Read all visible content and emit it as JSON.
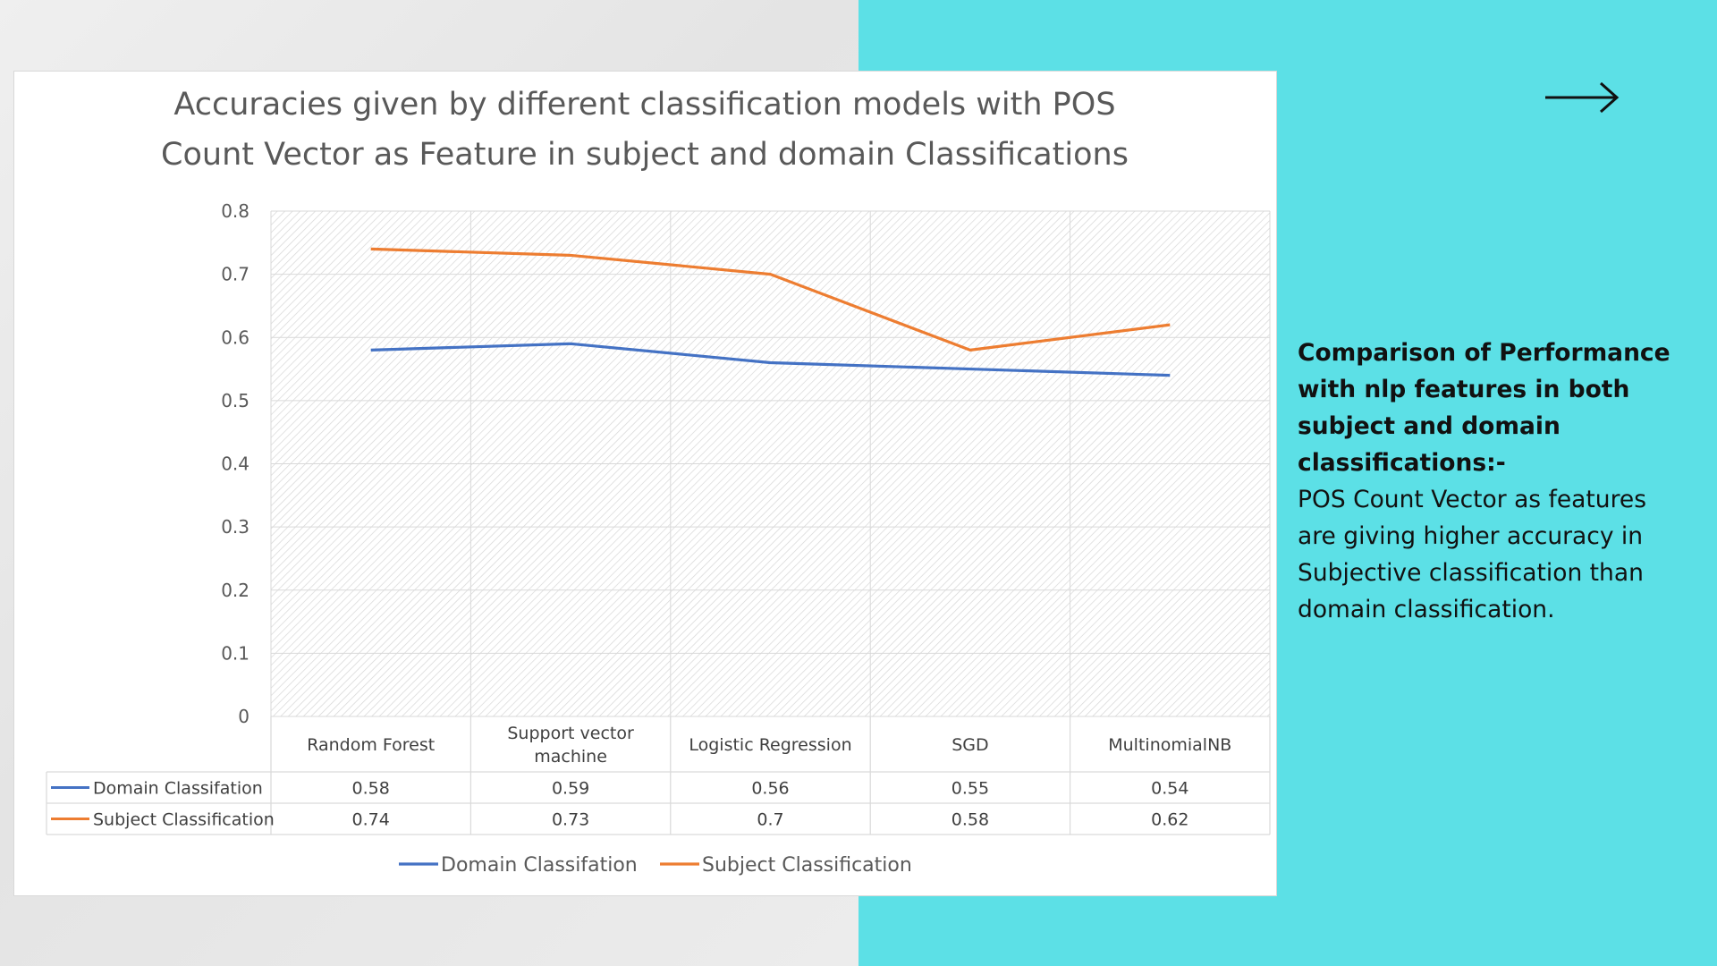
{
  "slide": {
    "heading": "Comparison of Performance with nlp features in both subject and domain classifications:-",
    "body": "POS Count Vector as features are giving higher accuracy in Subjective classification than domain classification.",
    "arrow_icon": "right-arrow-icon",
    "colors": {
      "accent_background": "#5ce0e6",
      "left_background": "#e9e9e9"
    }
  },
  "chart_data": {
    "type": "line",
    "title": "Accuracies given by different classification models with POS Count Vector as Feature in subject and domain Classifications",
    "title_lines": [
      "Accuracies given by different classification models with POS",
      "Count Vector as Feature in subject and domain Classifications"
    ],
    "categories": [
      "Random Forest",
      "Support vector machine",
      "Logistic Regression",
      "SGD",
      "MultinomialNB"
    ],
    "category_label_lines": [
      [
        "Random Forest"
      ],
      [
        "Support vector",
        "machine"
      ],
      [
        "Logistic Regression"
      ],
      [
        "SGD"
      ],
      [
        "MultinomialNB"
      ]
    ],
    "series": [
      {
        "name": "Domain Classifation",
        "color": "#4472c4",
        "values": [
          0.58,
          0.59,
          0.56,
          0.55,
          0.54
        ],
        "labels": [
          "0.58",
          "0.59",
          "0.56",
          "0.55",
          "0.54"
        ]
      },
      {
        "name": "Subject Classification",
        "color": "#ed7d31",
        "values": [
          0.74,
          0.73,
          0.7,
          0.58,
          0.62
        ],
        "labels": [
          "0.74",
          "0.73",
          "0.7",
          "0.58",
          "0.62"
        ]
      }
    ],
    "y_ticks": [
      "0",
      "0.1",
      "0.2",
      "0.3",
      "0.4",
      "0.5",
      "0.6",
      "0.7",
      "0.8"
    ],
    "ylim": [
      0,
      0.8
    ],
    "grid": true,
    "data_table": true,
    "legend": "bottom"
  }
}
